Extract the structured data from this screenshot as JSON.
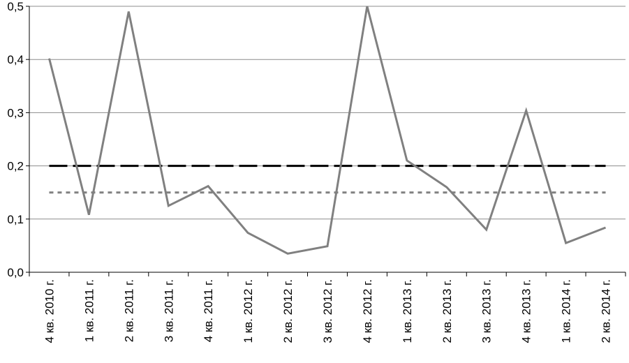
{
  "chart_data": {
    "type": "line",
    "categories": [
      "4 кв. 2010 г.",
      "1 кв. 2011 г.",
      "2 кв. 2011 г.",
      "3 кв. 2011 г.",
      "4 кв. 2011 г.",
      "1 кв. 2012 г.",
      "2 кв. 2012 г.",
      "3 кв. 2012 г.",
      "4 кв. 2012 г.",
      "1 кв.  2013 г.",
      "2 кв.  2013 г.",
      "3 кв.  2013 г.",
      "4 кв.  2013 г.",
      "1 кв.  2014 г.",
      "2 кв.  2014 г."
    ],
    "series": [
      {
        "values": [
          0.402,
          0.108,
          0.49,
          0.125,
          0.162,
          0.074,
          0.035,
          0.049,
          0.5,
          0.21,
          0.16,
          0.08,
          0.304,
          0.055,
          0.084
        ],
        "color": "#808080",
        "style": "solid"
      }
    ],
    "reference_lines": [
      {
        "value": 0.2,
        "color": "#000000",
        "style": "dashed"
      },
      {
        "value": 0.15,
        "color": "#808080",
        "style": "dotted"
      }
    ],
    "y_ticks": [
      "0,0",
      "0,1",
      "0,2",
      "0,3",
      "0,4",
      "0,5"
    ],
    "ylim": [
      0,
      0.5
    ],
    "grid": true,
    "title": "",
    "xlabel": "",
    "ylabel": ""
  }
}
